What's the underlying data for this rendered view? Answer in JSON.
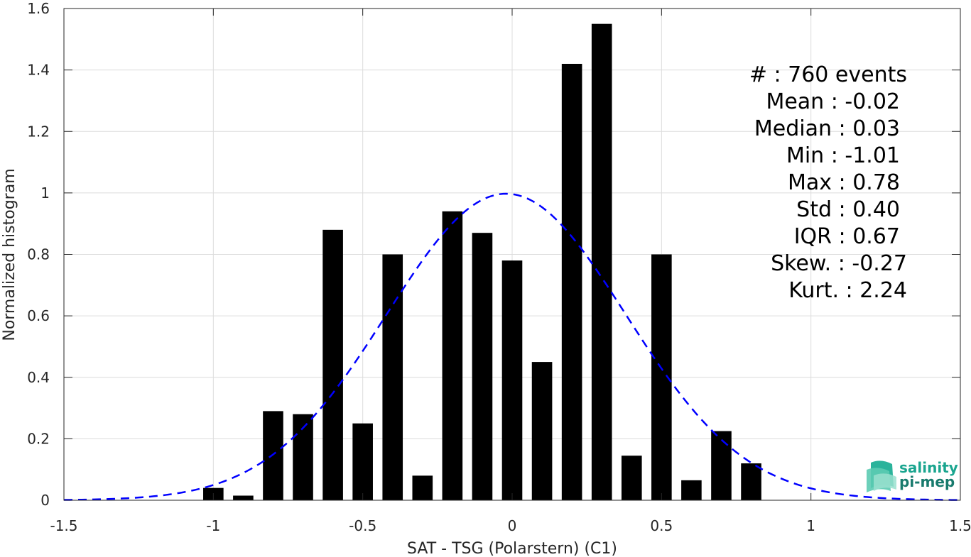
{
  "chart_data": {
    "type": "bar",
    "xlabel": "SAT - TSG (Polarstern) (C1)",
    "ylabel": "Normalized histogram",
    "xlim": [
      -1.5,
      1.5
    ],
    "ylim": [
      0,
      1.6
    ],
    "xticks": [
      "-1.5",
      "-1",
      "-0.5",
      "0",
      "0.5",
      "1",
      "1.5"
    ],
    "xtick_values": [
      -1.5,
      -1,
      -0.5,
      0,
      0.5,
      1,
      1.5
    ],
    "yticks": [
      "0",
      "0.2",
      "0.4",
      "0.6",
      "0.8",
      "1",
      "1.2",
      "1.4",
      "1.6"
    ],
    "ytick_values": [
      0,
      0.2,
      0.4,
      0.6,
      0.8,
      1.0,
      1.2,
      1.4,
      1.6
    ],
    "grid": true,
    "bar_color": "#000000",
    "bins": [
      -1.0,
      -0.9,
      -0.8,
      -0.7,
      -0.6,
      -0.5,
      -0.4,
      -0.3,
      -0.2,
      -0.1,
      0.0,
      0.1,
      0.2,
      0.3,
      0.4,
      0.5,
      0.6,
      0.7,
      0.8
    ],
    "values": [
      0.04,
      0.015,
      0.29,
      0.28,
      0.88,
      0.25,
      0.8,
      0.08,
      0.94,
      0.87,
      0.78,
      0.45,
      1.42,
      1.55,
      0.145,
      0.8,
      0.065,
      0.225,
      0.12
    ],
    "fit_curve": {
      "style": "dashed",
      "color": "#0000ff",
      "mean": -0.02,
      "std": 0.4
    },
    "stats_lines": [
      "#  : 760 events",
      "Mean : -0.02",
      "Median : 0.03",
      "Min : -1.01",
      "Max : 0.78",
      "Std : 0.40",
      "IQR : 0.67",
      "Skew. : -0.27",
      "Kurt. : 2.24"
    ]
  },
  "logo": {
    "line1": "salinity",
    "line2": "pi-mep",
    "color_primary": "#1aa58f",
    "color_secondary": "#187a6d"
  }
}
